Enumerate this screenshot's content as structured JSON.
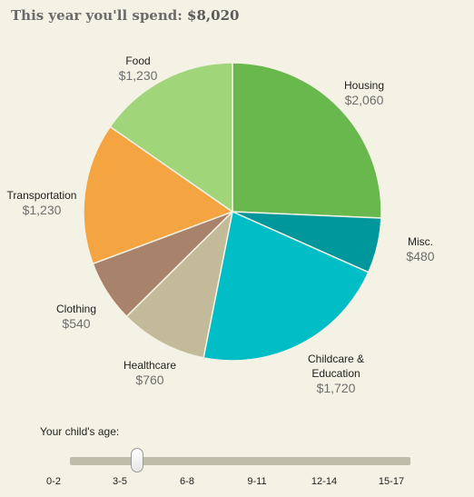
{
  "header": {
    "title_prefix": "This year you'll spend:",
    "title_amount": "$8,020"
  },
  "chart_data": {
    "type": "pie",
    "total": 8020,
    "slices": [
      {
        "label": "Housing",
        "display": "$2,060",
        "value": 2060,
        "color": "#68b84e"
      },
      {
        "label": "Misc.",
        "display": "$480",
        "value": 480,
        "color": "#00979c"
      },
      {
        "label": "Childcare & Education",
        "display": "$1,720",
        "value": 1720,
        "color": "#00bdc6"
      },
      {
        "label": "Healthcare",
        "display": "$760",
        "value": 760,
        "color": "#c3ba99"
      },
      {
        "label": "Clothing",
        "display": "$540",
        "value": 540,
        "color": "#a8826a"
      },
      {
        "label": "Transportation",
        "display": "$1,230",
        "value": 1230,
        "color": "#f5a442"
      },
      {
        "label": "Food",
        "display": "$1,230",
        "value": 1230,
        "color": "#a0d57a"
      }
    ]
  },
  "labels": {
    "food": {
      "name": "Food",
      "value": "$1,230"
    },
    "housing": {
      "name": "Housing",
      "value": "$2,060"
    },
    "transportation": {
      "name": "Transportation",
      "value": "$1,230"
    },
    "misc": {
      "name": "Misc.",
      "value": "$480"
    },
    "clothing": {
      "name": "Clothing",
      "value": "$540"
    },
    "healthcare": {
      "name": "Healthcare",
      "value": "$760"
    },
    "childcare": {
      "name_line1": "Childcare &",
      "name_line2": "Education",
      "value": "$1,720"
    }
  },
  "age_slider": {
    "label": "Your child's age:",
    "ticks": [
      "0-2",
      "3-5",
      "6-8",
      "9-11",
      "12-14",
      "15-17"
    ],
    "selected": "3-5"
  }
}
